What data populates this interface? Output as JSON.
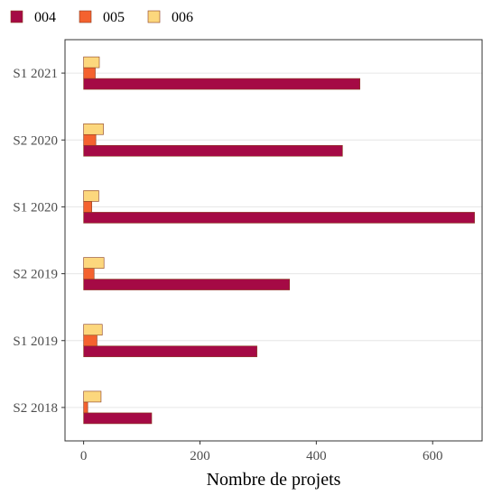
{
  "chart_data": {
    "type": "bar",
    "orientation": "horizontal",
    "categories": [
      "S1 2021",
      "S2 2020",
      "S1 2020",
      "S2 2019",
      "S1 2019",
      "S2 2018"
    ],
    "series": [
      {
        "name": "004",
        "color": "#a50a45",
        "values": [
          475,
          445,
          672,
          354,
          298,
          117
        ]
      },
      {
        "name": "005",
        "color": "#f4622f",
        "values": [
          20,
          21,
          14,
          18,
          23,
          7
        ]
      },
      {
        "name": "006",
        "color": "#fcd77d",
        "values": [
          27,
          34,
          26,
          35,
          32,
          30
        ]
      }
    ],
    "xlabel": "Nombre de projets",
    "ylabel": "",
    "xlim": [
      -32,
      685
    ],
    "xticks": [
      0,
      200,
      400,
      600
    ],
    "xtick_labels": [
      "0",
      "200",
      "400",
      "600"
    ],
    "legend_position": "top-left",
    "grid": "horizontal-only",
    "bar_outline_color": "#8a3c1e",
    "gridline_color": "#e6e6e6"
  }
}
